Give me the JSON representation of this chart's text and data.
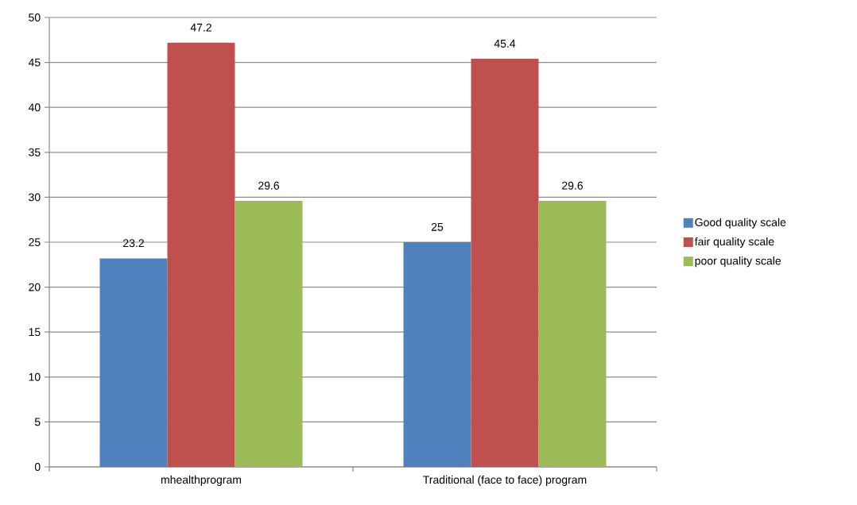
{
  "chart_data": {
    "type": "bar",
    "categories": [
      "mhealthprogram",
      "Traditional  (face to face) program"
    ],
    "series": [
      {
        "name": "Good quality scale",
        "color": "#4f81bd",
        "values": [
          23.2,
          25
        ]
      },
      {
        "name": "fair quality scale",
        "color": "#c0504d",
        "values": [
          47.2,
          45.4
        ]
      },
      {
        "name": "poor quality scale",
        "color": "#9bbb59",
        "values": [
          29.6,
          29.6
        ]
      }
    ],
    "ylim": [
      0,
      50
    ],
    "yticks": [
      0,
      5,
      10,
      15,
      20,
      25,
      30,
      35,
      40,
      45,
      50
    ],
    "grid": "y",
    "legend": "right",
    "data_labels": true
  }
}
